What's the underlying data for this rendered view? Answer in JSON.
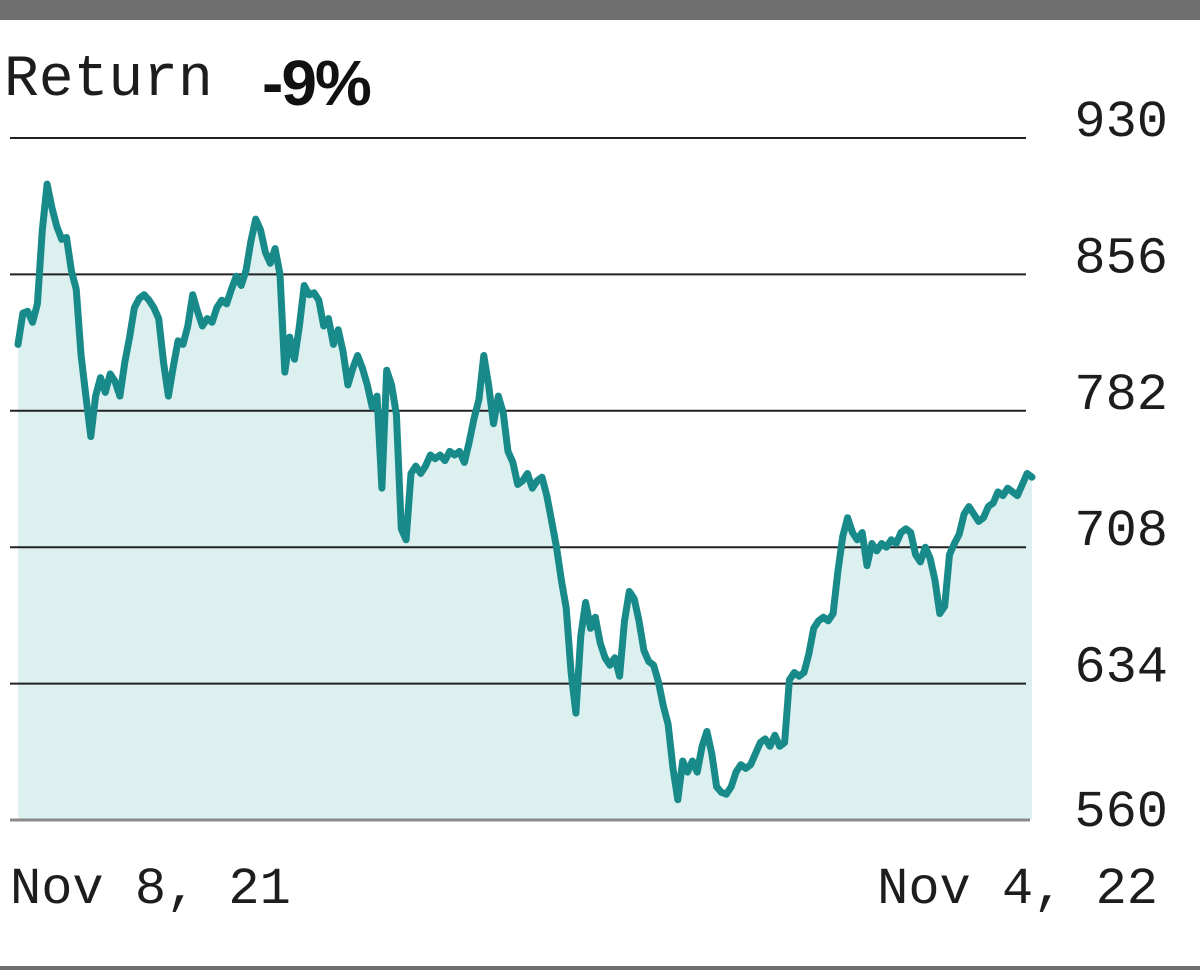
{
  "return_box": {
    "label": "Return",
    "value": "-9%"
  },
  "colors": {
    "line": "#198a8a",
    "fill": "#dcf0f0",
    "grid": "#222222",
    "frame": "#6f6f6f",
    "text": "#1d1d1d"
  },
  "chart_data": {
    "type": "area",
    "title": "",
    "xlabel": "",
    "ylabel": "",
    "x_labels": [
      "Nov 8, 21",
      "Nov 4, 22"
    ],
    "x_range": [
      "2021-11-08",
      "2022-11-04"
    ],
    "ylim": [
      560,
      930
    ],
    "y_ticks": [
      930,
      856,
      782,
      708,
      634,
      560
    ],
    "grid": "horizontal",
    "series": [
      {
        "values": [
          818,
          835,
          836,
          830,
          840,
          880,
          905,
          892,
          882,
          875,
          876,
          858,
          848,
          812,
          790,
          768,
          790,
          800,
          792,
          802,
          798,
          790,
          808,
          822,
          838,
          843,
          845,
          842,
          838,
          832,
          808,
          790,
          806,
          820,
          818,
          828,
          845,
          836,
          828,
          832,
          830,
          838,
          842,
          840,
          848,
          855,
          850,
          858,
          874,
          886,
          880,
          868,
          862,
          870,
          856,
          803,
          822,
          810,
          828,
          850,
          845,
          846,
          842,
          828,
          832,
          818,
          826,
          814,
          796,
          805,
          812,
          805,
          796,
          784,
          790,
          740,
          804,
          796,
          780,
          718,
          712,
          748,
          752,
          748,
          752,
          758,
          756,
          758,
          755,
          760,
          758,
          760,
          754,
          765,
          778,
          788,
          812,
          796,
          775,
          790,
          781,
          760,
          754,
          742,
          744,
          748,
          740,
          744,
          746,
          736,
          722,
          708,
          690,
          675,
          640,
          618,
          660,
          678,
          664,
          670,
          656,
          648,
          644,
          648,
          638,
          668,
          684,
          680,
          668,
          652,
          646,
          644,
          635,
          622,
          612,
          588,
          571,
          592,
          586,
          592,
          586,
          600,
          608,
          596,
          578,
          575,
          574,
          578,
          586,
          590,
          588,
          590,
          596,
          602,
          604,
          600,
          606,
          600,
          602,
          636,
          640,
          638,
          640,
          650,
          664,
          668,
          670,
          668,
          672,
          695,
          714,
          724,
          716,
          712,
          716,
          698,
          710,
          706,
          710,
          708,
          712,
          710,
          716,
          718,
          716,
          704,
          700,
          708,
          702,
          690,
          672,
          676,
          704,
          710,
          715,
          726,
          730,
          726,
          722,
          724,
          730,
          732,
          738,
          736,
          740,
          738,
          736,
          742,
          748,
          746
        ]
      }
    ]
  }
}
